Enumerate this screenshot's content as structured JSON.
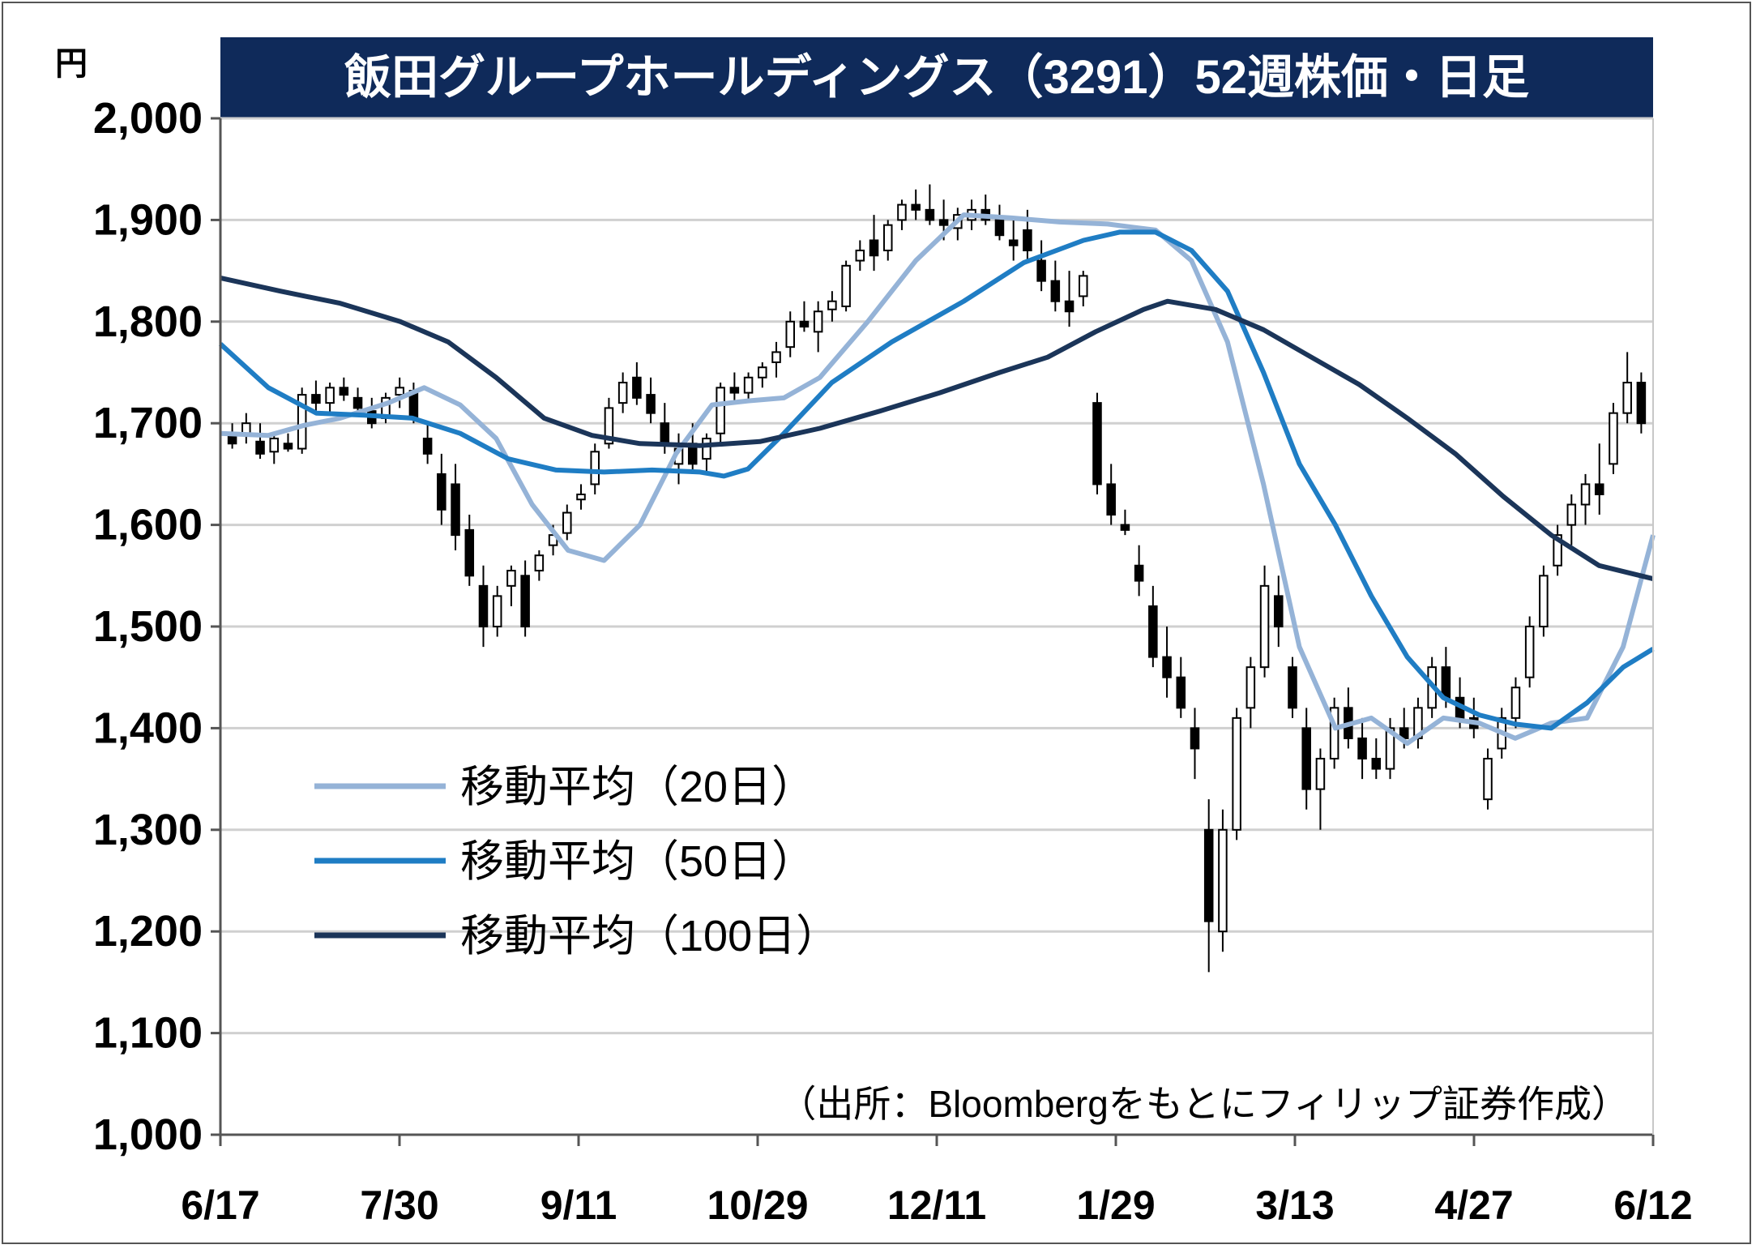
{
  "chart_data": {
    "type": "candlestick",
    "title": "飯田グループホールディングス（3291）52週株価・日足",
    "unit": "円",
    "ylim": [
      1000,
      2000
    ],
    "yticks": [
      "1,000",
      "1,100",
      "1,200",
      "1,300",
      "1,400",
      "1,500",
      "1,600",
      "1,700",
      "1,800",
      "1,900",
      "2,000"
    ],
    "xticks": [
      "6/17",
      "7/30",
      "9/11",
      "10/29",
      "12/11",
      "1/29",
      "3/13",
      "4/27",
      "6/12"
    ],
    "grid": true,
    "legend_position": "lower-left",
    "source": "（出所：Bloombergをもとにフィリップ証券作成）",
    "series": [
      {
        "name": "移動平均（20日）",
        "color": "#95b3d7",
        "values": [
          [
            0,
            1690
          ],
          [
            8,
            1688
          ],
          [
            14,
            1698
          ],
          [
            20,
            1705
          ],
          [
            28,
            1720
          ],
          [
            34,
            1735
          ],
          [
            40,
            1718
          ],
          [
            46,
            1685
          ],
          [
            52,
            1620
          ],
          [
            58,
            1575
          ],
          [
            64,
            1565
          ],
          [
            70,
            1600
          ],
          [
            76,
            1670
          ],
          [
            82,
            1718
          ],
          [
            88,
            1722
          ],
          [
            94,
            1725
          ],
          [
            100,
            1745
          ],
          [
            108,
            1800
          ],
          [
            116,
            1860
          ],
          [
            124,
            1905
          ],
          [
            132,
            1902
          ],
          [
            140,
            1898
          ],
          [
            148,
            1896
          ],
          [
            156,
            1890
          ],
          [
            162,
            1860
          ],
          [
            168,
            1780
          ],
          [
            174,
            1640
          ],
          [
            180,
            1480
          ],
          [
            186,
            1400
          ],
          [
            192,
            1410
          ],
          [
            198,
            1385
          ],
          [
            204,
            1410
          ],
          [
            210,
            1405
          ],
          [
            216,
            1390
          ],
          [
            222,
            1405
          ],
          [
            228,
            1410
          ],
          [
            234,
            1480
          ],
          [
            239,
            1590
          ]
        ]
      },
      {
        "name": "移動平均（50日）",
        "color": "#1f7dc4",
        "values": [
          [
            0,
            1778
          ],
          [
            8,
            1735
          ],
          [
            16,
            1710
          ],
          [
            24,
            1708
          ],
          [
            32,
            1705
          ],
          [
            40,
            1690
          ],
          [
            48,
            1665
          ],
          [
            56,
            1654
          ],
          [
            64,
            1652
          ],
          [
            72,
            1654
          ],
          [
            80,
            1652
          ],
          [
            84,
            1648
          ],
          [
            88,
            1655
          ],
          [
            94,
            1690
          ],
          [
            102,
            1740
          ],
          [
            112,
            1780
          ],
          [
            124,
            1820
          ],
          [
            134,
            1858
          ],
          [
            144,
            1880
          ],
          [
            150,
            1888
          ],
          [
            156,
            1888
          ],
          [
            162,
            1870
          ],
          [
            168,
            1830
          ],
          [
            174,
            1750
          ],
          [
            180,
            1660
          ],
          [
            186,
            1600
          ],
          [
            192,
            1530
          ],
          [
            198,
            1470
          ],
          [
            204,
            1430
          ],
          [
            210,
            1413
          ],
          [
            216,
            1404
          ],
          [
            222,
            1400
          ],
          [
            228,
            1425
          ],
          [
            234,
            1460
          ],
          [
            239,
            1478
          ]
        ]
      },
      {
        "name": "移動平均（100日）",
        "color": "#1b3559",
        "values": [
          [
            0,
            1843
          ],
          [
            10,
            1830
          ],
          [
            20,
            1818
          ],
          [
            30,
            1800
          ],
          [
            38,
            1780
          ],
          [
            46,
            1745
          ],
          [
            54,
            1705
          ],
          [
            62,
            1688
          ],
          [
            70,
            1680
          ],
          [
            80,
            1678
          ],
          [
            90,
            1682
          ],
          [
            100,
            1695
          ],
          [
            110,
            1712
          ],
          [
            120,
            1730
          ],
          [
            130,
            1750
          ],
          [
            138,
            1765
          ],
          [
            146,
            1790
          ],
          [
            154,
            1812
          ],
          [
            158,
            1820
          ],
          [
            166,
            1812
          ],
          [
            174,
            1792
          ],
          [
            182,
            1765
          ],
          [
            190,
            1738
          ],
          [
            198,
            1705
          ],
          [
            206,
            1670
          ],
          [
            214,
            1628
          ],
          [
            222,
            1590
          ],
          [
            230,
            1560
          ],
          [
            239,
            1547
          ]
        ]
      }
    ],
    "candles_ohlc": [
      [
        1690,
        1700,
        1675,
        1680
      ],
      [
        1688,
        1710,
        1680,
        1700
      ],
      [
        1682,
        1700,
        1665,
        1670
      ],
      [
        1672,
        1690,
        1660,
        1685
      ],
      [
        1680,
        1690,
        1672,
        1675
      ],
      [
        1675,
        1735,
        1670,
        1728
      ],
      [
        1728,
        1742,
        1712,
        1720
      ],
      [
        1720,
        1740,
        1710,
        1735
      ],
      [
        1735,
        1745,
        1722,
        1728
      ],
      [
        1725,
        1735,
        1710,
        1715
      ],
      [
        1712,
        1725,
        1695,
        1700
      ],
      [
        1705,
        1730,
        1700,
        1725
      ],
      [
        1728,
        1745,
        1715,
        1735
      ],
      [
        1732,
        1740,
        1700,
        1705
      ],
      [
        1685,
        1700,
        1660,
        1670
      ],
      [
        1650,
        1670,
        1600,
        1615
      ],
      [
        1640,
        1660,
        1575,
        1590
      ],
      [
        1595,
        1610,
        1540,
        1550
      ],
      [
        1540,
        1560,
        1480,
        1500
      ],
      [
        1500,
        1540,
        1490,
        1530
      ],
      [
        1540,
        1560,
        1520,
        1555
      ],
      [
        1550,
        1565,
        1490,
        1500
      ],
      [
        1555,
        1575,
        1545,
        1570
      ],
      [
        1580,
        1600,
        1570,
        1590
      ],
      [
        1592,
        1620,
        1585,
        1612
      ],
      [
        1625,
        1640,
        1615,
        1630
      ],
      [
        1640,
        1680,
        1630,
        1672
      ],
      [
        1680,
        1725,
        1675,
        1715
      ],
      [
        1720,
        1750,
        1710,
        1740
      ],
      [
        1745,
        1760,
        1718,
        1725
      ],
      [
        1728,
        1745,
        1700,
        1710
      ],
      [
        1700,
        1720,
        1670,
        1680
      ],
      [
        1660,
        1690,
        1640,
        1675
      ],
      [
        1680,
        1700,
        1650,
        1660
      ],
      [
        1665,
        1690,
        1650,
        1685
      ],
      [
        1690,
        1740,
        1680,
        1735
      ],
      [
        1735,
        1750,
        1720,
        1730
      ],
      [
        1730,
        1750,
        1720,
        1745
      ],
      [
        1745,
        1760,
        1735,
        1755
      ],
      [
        1760,
        1780,
        1745,
        1770
      ],
      [
        1775,
        1810,
        1765,
        1800
      ],
      [
        1800,
        1820,
        1790,
        1795
      ],
      [
        1790,
        1820,
        1770,
        1810
      ],
      [
        1812,
        1830,
        1800,
        1820
      ],
      [
        1815,
        1860,
        1810,
        1855
      ],
      [
        1860,
        1880,
        1850,
        1870
      ],
      [
        1880,
        1905,
        1850,
        1865
      ],
      [
        1870,
        1900,
        1860,
        1895
      ],
      [
        1900,
        1920,
        1890,
        1915
      ],
      [
        1915,
        1930,
        1900,
        1910
      ],
      [
        1910,
        1935,
        1895,
        1900
      ],
      [
        1900,
        1920,
        1880,
        1895
      ],
      [
        1892,
        1912,
        1880,
        1905
      ],
      [
        1900,
        1920,
        1890,
        1910
      ],
      [
        1910,
        1925,
        1895,
        1900
      ],
      [
        1900,
        1915,
        1880,
        1885
      ],
      [
        1880,
        1900,
        1860,
        1875
      ],
      [
        1890,
        1910,
        1860,
        1870
      ],
      [
        1860,
        1880,
        1830,
        1840
      ],
      [
        1840,
        1860,
        1810,
        1820
      ],
      [
        1820,
        1850,
        1795,
        1810
      ],
      [
        1825,
        1850,
        1815,
        1845
      ],
      [
        1720,
        1730,
        1630,
        1640
      ],
      [
        1640,
        1660,
        1600,
        1610
      ],
      [
        1600,
        1615,
        1590,
        1595
      ],
      [
        1560,
        1580,
        1530,
        1545
      ],
      [
        1520,
        1540,
        1460,
        1470
      ],
      [
        1470,
        1500,
        1430,
        1450
      ],
      [
        1450,
        1470,
        1410,
        1420
      ],
      [
        1400,
        1420,
        1350,
        1380
      ],
      [
        1300,
        1330,
        1160,
        1210
      ],
      [
        1200,
        1320,
        1180,
        1300
      ],
      [
        1300,
        1420,
        1290,
        1410
      ],
      [
        1420,
        1470,
        1400,
        1460
      ],
      [
        1460,
        1560,
        1450,
        1540
      ],
      [
        1530,
        1550,
        1480,
        1500
      ],
      [
        1460,
        1470,
        1410,
        1420
      ],
      [
        1400,
        1420,
        1320,
        1340
      ],
      [
        1340,
        1380,
        1300,
        1370
      ],
      [
        1370,
        1430,
        1360,
        1420
      ],
      [
        1420,
        1440,
        1380,
        1390
      ],
      [
        1390,
        1410,
        1350,
        1370
      ],
      [
        1370,
        1390,
        1350,
        1360
      ],
      [
        1360,
        1410,
        1350,
        1400
      ],
      [
        1400,
        1420,
        1380,
        1390
      ],
      [
        1390,
        1430,
        1380,
        1420
      ],
      [
        1420,
        1470,
        1410,
        1460
      ],
      [
        1460,
        1480,
        1420,
        1430
      ],
      [
        1430,
        1450,
        1400,
        1410
      ],
      [
        1410,
        1430,
        1390,
        1400
      ],
      [
        1330,
        1380,
        1320,
        1370
      ],
      [
        1380,
        1420,
        1370,
        1410
      ],
      [
        1410,
        1450,
        1400,
        1440
      ],
      [
        1450,
        1510,
        1440,
        1500
      ],
      [
        1500,
        1560,
        1490,
        1550
      ],
      [
        1560,
        1600,
        1550,
        1590
      ],
      [
        1600,
        1630,
        1580,
        1620
      ],
      [
        1620,
        1650,
        1600,
        1640
      ],
      [
        1640,
        1680,
        1610,
        1630
      ],
      [
        1660,
        1720,
        1650,
        1710
      ],
      [
        1710,
        1770,
        1700,
        1740
      ],
      [
        1740,
        1750,
        1690,
        1700
      ]
    ]
  }
}
